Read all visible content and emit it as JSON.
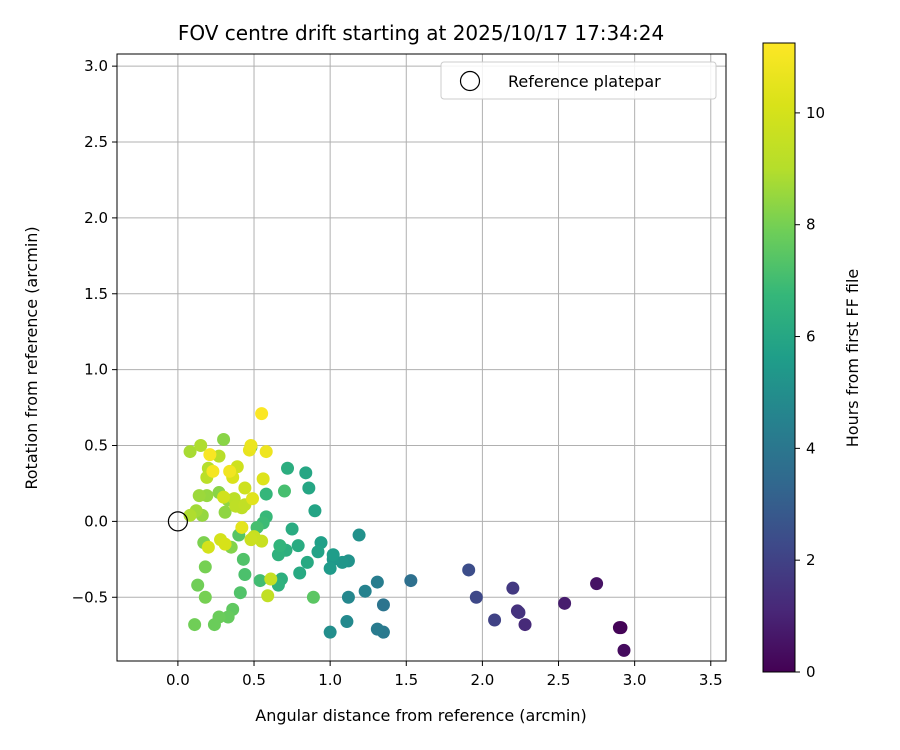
{
  "chart_data": {
    "type": "scatter",
    "title": "FOV centre drift starting at 2025/10/17 17:34:24",
    "xlabel": "Angular distance from reference (arcmin)",
    "ylabel": "Rotation from reference (arcmin)",
    "xlim": [
      -0.4,
      3.6
    ],
    "ylim": [
      -0.92,
      3.08
    ],
    "xticks": [
      0.0,
      0.5,
      1.0,
      1.5,
      2.0,
      2.5,
      3.0,
      3.5
    ],
    "xtick_labels": [
      "0.0",
      "0.5",
      "1.0",
      "1.5",
      "2.0",
      "2.5",
      "3.0",
      "3.5"
    ],
    "yticks": [
      -0.5,
      0.0,
      0.5,
      1.0,
      1.5,
      2.0,
      2.5,
      3.0
    ],
    "ytick_labels": [
      "−0.5",
      "0.0",
      "0.5",
      "1.0",
      "1.5",
      "2.0",
      "2.5",
      "3.0"
    ],
    "grid": true,
    "legend": {
      "placement": "top-right",
      "label": "Reference platepar"
    },
    "reference_point": {
      "x": 0.0,
      "y": 0.0
    },
    "colorbar": {
      "label": "Hours from first FF file",
      "colormap": "viridis",
      "range": [
        0,
        11.25
      ],
      "ticks": [
        0,
        2,
        4,
        6,
        8,
        10
      ],
      "tick_labels": [
        "0",
        "2",
        "4",
        "6",
        "8",
        "10"
      ]
    },
    "points": [
      {
        "x": 2.91,
        "y": -0.7,
        "c": 0.0
      },
      {
        "x": 2.9,
        "y": -0.7,
        "c": 0.1
      },
      {
        "x": 2.93,
        "y": -0.85,
        "c": 0.3
      },
      {
        "x": 2.75,
        "y": -0.41,
        "c": 0.5
      },
      {
        "x": 2.54,
        "y": -0.54,
        "c": 0.8
      },
      {
        "x": 2.28,
        "y": -0.68,
        "c": 1.2
      },
      {
        "x": 2.23,
        "y": -0.59,
        "c": 1.4
      },
      {
        "x": 2.24,
        "y": -0.6,
        "c": 1.5
      },
      {
        "x": 2.2,
        "y": -0.44,
        "c": 1.7
      },
      {
        "x": 2.08,
        "y": -0.65,
        "c": 2.0
      },
      {
        "x": 1.96,
        "y": -0.5,
        "c": 2.2
      },
      {
        "x": 1.91,
        "y": -0.32,
        "c": 2.4
      },
      {
        "x": 1.53,
        "y": -0.39,
        "c": 3.7
      },
      {
        "x": 1.35,
        "y": -0.55,
        "c": 3.9
      },
      {
        "x": 1.35,
        "y": -0.73,
        "c": 4.1
      },
      {
        "x": 1.31,
        "y": -0.71,
        "c": 4.2
      },
      {
        "x": 1.31,
        "y": -0.4,
        "c": 4.3
      },
      {
        "x": 1.23,
        "y": -0.46,
        "c": 4.5
      },
      {
        "x": 1.12,
        "y": -0.5,
        "c": 4.7
      },
      {
        "x": 1.11,
        "y": -0.66,
        "c": 4.8
      },
      {
        "x": 1.0,
        "y": -0.73,
        "c": 5.0
      },
      {
        "x": 1.19,
        "y": -0.09,
        "c": 5.1
      },
      {
        "x": 1.12,
        "y": -0.26,
        "c": 5.2
      },
      {
        "x": 1.08,
        "y": -0.27,
        "c": 5.3
      },
      {
        "x": 1.02,
        "y": -0.25,
        "c": 5.4
      },
      {
        "x": 1.0,
        "y": -0.31,
        "c": 5.5
      },
      {
        "x": 1.02,
        "y": -0.22,
        "c": 5.6
      },
      {
        "x": 0.94,
        "y": -0.14,
        "c": 5.7
      },
      {
        "x": 0.92,
        "y": -0.2,
        "c": 5.8
      },
      {
        "x": 0.9,
        "y": 0.07,
        "c": 5.9
      },
      {
        "x": 0.86,
        "y": 0.22,
        "c": 6.0
      },
      {
        "x": 0.84,
        "y": 0.32,
        "c": 6.0
      },
      {
        "x": 0.85,
        "y": -0.27,
        "c": 6.1
      },
      {
        "x": 0.8,
        "y": -0.34,
        "c": 6.1
      },
      {
        "x": 0.79,
        "y": -0.16,
        "c": 6.2
      },
      {
        "x": 0.75,
        "y": -0.05,
        "c": 6.2
      },
      {
        "x": 0.72,
        "y": 0.35,
        "c": 6.3
      },
      {
        "x": 0.71,
        "y": -0.19,
        "c": 6.4
      },
      {
        "x": 0.68,
        "y": -0.38,
        "c": 6.4
      },
      {
        "x": 0.66,
        "y": -0.42,
        "c": 6.5
      },
      {
        "x": 0.66,
        "y": -0.22,
        "c": 6.5
      },
      {
        "x": 0.67,
        "y": -0.16,
        "c": 6.6
      },
      {
        "x": 0.58,
        "y": 0.18,
        "c": 6.7
      },
      {
        "x": 0.58,
        "y": 0.03,
        "c": 6.8
      },
      {
        "x": 0.56,
        "y": -0.01,
        "c": 6.9
      },
      {
        "x": 0.54,
        "y": -0.39,
        "c": 7.0
      },
      {
        "x": 0.7,
        "y": 0.2,
        "c": 7.1
      },
      {
        "x": 0.52,
        "y": -0.04,
        "c": 7.1
      },
      {
        "x": 0.48,
        "y": 0.49,
        "c": 7.2
      },
      {
        "x": 0.44,
        "y": -0.35,
        "c": 7.2
      },
      {
        "x": 0.43,
        "y": -0.25,
        "c": 7.3
      },
      {
        "x": 0.41,
        "y": -0.47,
        "c": 7.3
      },
      {
        "x": 0.4,
        "y": -0.09,
        "c": 7.4
      },
      {
        "x": 0.89,
        "y": -0.5,
        "c": 7.5
      },
      {
        "x": 0.36,
        "y": -0.58,
        "c": 7.6
      },
      {
        "x": 0.33,
        "y": -0.63,
        "c": 7.7
      },
      {
        "x": 0.27,
        "y": -0.63,
        "c": 7.8
      },
      {
        "x": 0.24,
        "y": -0.68,
        "c": 7.8
      },
      {
        "x": 0.11,
        "y": -0.68,
        "c": 7.9
      },
      {
        "x": 0.13,
        "y": -0.42,
        "c": 7.9
      },
      {
        "x": 0.18,
        "y": -0.3,
        "c": 8.0
      },
      {
        "x": 0.18,
        "y": -0.5,
        "c": 8.0
      },
      {
        "x": 0.17,
        "y": -0.14,
        "c": 8.1
      },
      {
        "x": 0.35,
        "y": -0.17,
        "c": 8.2
      },
      {
        "x": 0.27,
        "y": 0.19,
        "c": 8.3
      },
      {
        "x": 0.3,
        "y": 0.54,
        "c": 8.3
      },
      {
        "x": 0.31,
        "y": 0.06,
        "c": 8.4
      },
      {
        "x": 0.33,
        "y": 0.14,
        "c": 8.4
      },
      {
        "x": 0.19,
        "y": 0.17,
        "c": 8.5
      },
      {
        "x": 0.16,
        "y": 0.04,
        "c": 8.5
      },
      {
        "x": 0.14,
        "y": 0.17,
        "c": 8.6
      },
      {
        "x": 0.12,
        "y": 0.07,
        "c": 8.7
      },
      {
        "x": 0.08,
        "y": 0.46,
        "c": 8.8
      },
      {
        "x": 0.08,
        "y": 0.04,
        "c": 8.9
      },
      {
        "x": 0.15,
        "y": 0.5,
        "c": 8.9
      },
      {
        "x": 0.2,
        "y": 0.35,
        "c": 9.0
      },
      {
        "x": 0.27,
        "y": 0.43,
        "c": 9.1
      },
      {
        "x": 0.19,
        "y": 0.29,
        "c": 9.2
      },
      {
        "x": 0.37,
        "y": 0.15,
        "c": 9.2
      },
      {
        "x": 0.38,
        "y": 0.1,
        "c": 9.3
      },
      {
        "x": 0.42,
        "y": 0.09,
        "c": 9.3
      },
      {
        "x": 0.44,
        "y": 0.11,
        "c": 9.4
      },
      {
        "x": 0.59,
        "y": -0.49,
        "c": 9.4
      },
      {
        "x": 0.61,
        "y": -0.38,
        "c": 9.5
      },
      {
        "x": 0.55,
        "y": -0.13,
        "c": 9.6
      },
      {
        "x": 0.5,
        "y": -0.1,
        "c": 9.6
      },
      {
        "x": 0.48,
        "y": -0.12,
        "c": 9.7
      },
      {
        "x": 0.44,
        "y": 0.22,
        "c": 9.8
      },
      {
        "x": 0.39,
        "y": 0.36,
        "c": 9.8
      },
      {
        "x": 0.3,
        "y": 0.16,
        "c": 9.9
      },
      {
        "x": 0.28,
        "y": -0.12,
        "c": 10.0
      },
      {
        "x": 0.2,
        "y": -0.17,
        "c": 10.0
      },
      {
        "x": 0.31,
        "y": -0.15,
        "c": 10.1
      },
      {
        "x": 0.36,
        "y": 0.29,
        "c": 10.2
      },
      {
        "x": 0.56,
        "y": 0.28,
        "c": 10.3
      },
      {
        "x": 0.49,
        "y": 0.15,
        "c": 10.4
      },
      {
        "x": 0.42,
        "y": -0.04,
        "c": 10.5
      },
      {
        "x": 0.47,
        "y": 0.47,
        "c": 10.6
      },
      {
        "x": 0.48,
        "y": 0.5,
        "c": 10.7
      },
      {
        "x": 0.58,
        "y": 0.46,
        "c": 10.8
      },
      {
        "x": 0.34,
        "y": 0.33,
        "c": 10.9
      },
      {
        "x": 0.23,
        "y": 0.33,
        "c": 11.0
      },
      {
        "x": 0.21,
        "y": 0.44,
        "c": 11.1
      },
      {
        "x": 0.55,
        "y": 0.71,
        "c": 11.2
      }
    ]
  }
}
